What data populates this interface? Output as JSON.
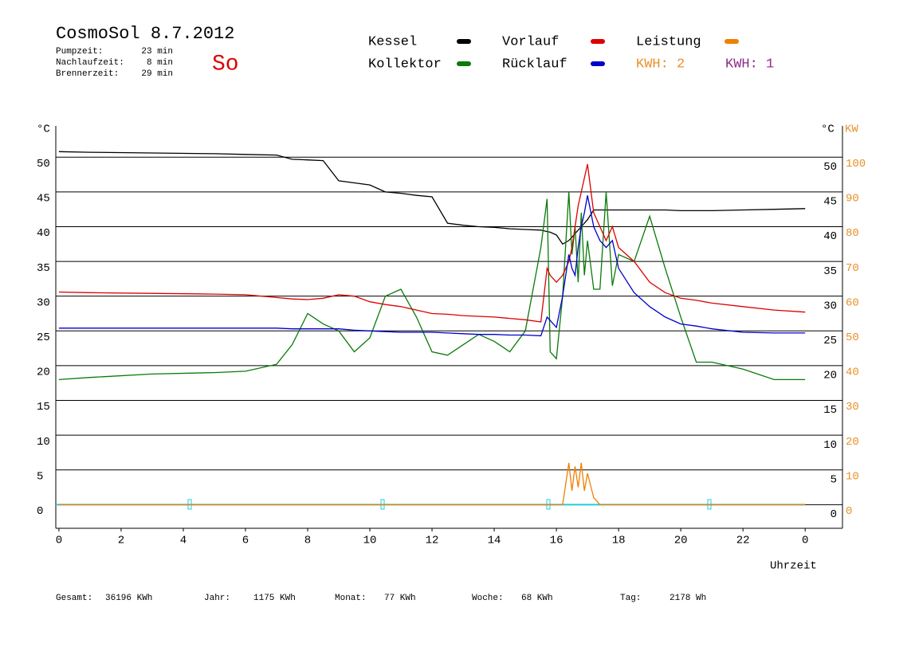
{
  "chart_data": {
    "type": "line",
    "title": "CosmoSol 8.7.2012",
    "day": "So",
    "info": [
      {
        "label": "Pumpzeit:",
        "value": "23 min"
      },
      {
        "label": "Nachlaufzeit:",
        "value": "8 min"
      },
      {
        "label": "Brennerzeit:",
        "value": "29 min"
      }
    ],
    "kwh_labels": [
      {
        "text": "KWH: 2",
        "color": "#e8902a"
      },
      {
        "text": "KWH: 1",
        "color": "#8b2a8b"
      }
    ],
    "y_label": "°C",
    "y2_label": "KW",
    "y2_color": "#e8902a",
    "x_label": "Uhrzeit",
    "totals": [
      {
        "label": "Gesamt:",
        "value": "36196 KWh"
      },
      {
        "label": "Jahr:",
        "value": "1175 KWh"
      },
      {
        "label": "Monat:",
        "value": "77 KWh"
      },
      {
        "label": "Woche:",
        "value": "68 KWh"
      },
      {
        "label": "Tag:",
        "value": "2178 Wh"
      }
    ],
    "x": [
      0,
      1,
      3,
      5,
      6,
      7,
      7.5,
      8,
      8.5,
      9,
      9.5,
      10,
      10.5,
      11,
      11.5,
      12,
      12.5,
      13,
      13.5,
      14,
      14.5,
      15,
      15.5,
      15.7,
      15.8,
      16,
      16.2,
      16.4,
      16.5,
      16.6,
      16.7,
      16.8,
      16.9,
      17,
      17.2,
      17.4,
      17.6,
      17.8,
      18,
      18.5,
      19,
      19.5,
      20,
      20.5,
      21,
      22,
      23,
      24
    ],
    "series": [
      {
        "name": "Kessel",
        "color": "#000000",
        "values": [
          50.8,
          50.7,
          50.6,
          50.5,
          50.4,
          50.3,
          49.7,
          49.6,
          49.5,
          46.6,
          46.3,
          46.0,
          45,
          44.8,
          44.5,
          44.3,
          40.5,
          40.2,
          40,
          39.9,
          39.7,
          39.6,
          39.5,
          39.3,
          39.2,
          38.8,
          37.5,
          38,
          38.5,
          39,
          39.5,
          40,
          40.5,
          41,
          42.4,
          42.4,
          42.4,
          42.4,
          42.4,
          42.4,
          42.4,
          42.4,
          42.3,
          42.3,
          42.3,
          42.4,
          42.5,
          42.6
        ]
      },
      {
        "name": "Kollektor",
        "color": "#0a7a0a",
        "values": [
          18,
          18.3,
          18.8,
          19,
          19.2,
          20.2,
          23,
          27.5,
          26,
          25,
          22,
          24,
          30,
          31,
          27,
          22,
          21.5,
          23,
          24.5,
          23.5,
          22,
          25,
          37,
          44,
          22,
          21,
          30,
          45,
          36,
          40,
          32,
          42,
          33,
          38,
          31,
          31,
          45,
          31.5,
          36,
          35,
          41.5,
          34,
          27,
          20.5,
          20.5,
          19.5,
          18,
          18
        ]
      },
      {
        "name": "Vorlauf",
        "color": "#dd0000",
        "values": [
          30.6,
          30.5,
          30.4,
          30.3,
          30.2,
          29.8,
          29.6,
          29.5,
          29.7,
          30.2,
          30,
          29.2,
          28.8,
          28.5,
          28,
          27.5,
          27.4,
          27.2,
          27.1,
          27,
          26.8,
          26.6,
          26.3,
          34,
          33,
          32,
          33,
          35,
          37,
          40,
          43,
          45,
          47,
          49,
          42,
          40,
          38,
          40,
          37,
          35,
          32,
          30.5,
          29.7,
          29.4,
          29,
          28.5,
          28,
          27.7
        ]
      },
      {
        "name": "Rücklauf",
        "color": "#0000cc",
        "values": [
          25.4,
          25.4,
          25.4,
          25.4,
          25.4,
          25.4,
          25.3,
          25.3,
          25.3,
          25.3,
          25.1,
          25,
          24.9,
          24.8,
          24.8,
          24.8,
          24.7,
          24.6,
          24.5,
          24.5,
          24.4,
          24.4,
          24.3,
          27,
          26.5,
          25.5,
          30,
          36,
          34,
          33,
          37,
          40,
          42,
          44.5,
          40,
          38,
          37,
          38,
          34,
          30.5,
          28.5,
          27,
          26,
          25.7,
          25.3,
          24.8,
          24.7,
          24.7
        ]
      },
      {
        "name": "Leistung",
        "color": "#f08000",
        "axis": "y2",
        "values": [
          0,
          0,
          0,
          0,
          0,
          0,
          0,
          0,
          0,
          0,
          0,
          0,
          0,
          0,
          0,
          0,
          0,
          0,
          0,
          0,
          0,
          0,
          0,
          0,
          0,
          0,
          0,
          12,
          4,
          11,
          5,
          12,
          4,
          9,
          2,
          0,
          0,
          0,
          0,
          0,
          0,
          0,
          0,
          0,
          0,
          0,
          0,
          0
        ]
      }
    ],
    "xlim": [
      -0.1,
      25.2
    ],
    "xticks": [
      0,
      2,
      4,
      6,
      8,
      10,
      12,
      14,
      16,
      18,
      20,
      22,
      {
        "value": 24,
        "label": "0"
      }
    ],
    "ylim": [
      -3.4,
      54.5
    ],
    "yticks": [
      0,
      5,
      10,
      15,
      20,
      25,
      30,
      35,
      40,
      45,
      50
    ],
    "y2lim": [
      -6.8,
      109
    ],
    "y2ticks": [
      0,
      10,
      20,
      30,
      40,
      50,
      60,
      70,
      80,
      90,
      100
    ],
    "grid": true
  }
}
